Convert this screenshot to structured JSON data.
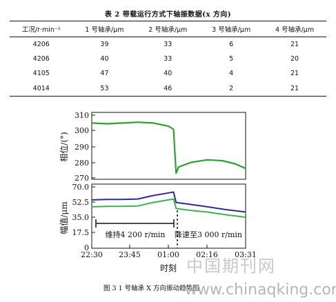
{
  "table": {
    "caption": "表 2 带载运行方式下轴振数据(x 方向)",
    "headers": [
      "工况/r·min⁻¹",
      "1 号轴承/μm",
      "2 号轴承/μm",
      "3 号轴承/μm",
      "4 号轴承/μm"
    ],
    "rows": [
      [
        "4206",
        "39",
        "33",
        "6",
        "21"
      ],
      [
        "4206",
        "40",
        "33",
        "5",
        "20"
      ],
      [
        "4105",
        "47",
        "40",
        "4",
        "21"
      ],
      [
        "4014",
        "53",
        "46",
        "2",
        "21"
      ]
    ]
  },
  "chart_data": [
    {
      "type": "line",
      "ylabel": "相位/(°)",
      "ylim": [
        270,
        310
      ],
      "yticks": [
        "310",
        "300",
        "290",
        "280",
        "270"
      ],
      "x_range": [
        "22:30",
        "03:31"
      ],
      "series": [
        {
          "color": "#2ca02c",
          "points": [
            [
              "22:30",
              305
            ],
            [
              "23:00",
              304.5
            ],
            [
              "23:30",
              305
            ],
            [
              "00:00",
              305.5
            ],
            [
              "00:30",
              305
            ],
            [
              "01:00",
              303
            ],
            [
              "01:10",
              301
            ],
            [
              "01:15",
              273
            ],
            [
              "01:20",
              277
            ],
            [
              "01:45",
              280
            ],
            [
              "02:16",
              281.5
            ],
            [
              "02:45",
              281
            ],
            [
              "03:10",
              279
            ],
            [
              "03:31",
              276
            ]
          ]
        }
      ]
    },
    {
      "type": "line",
      "ylabel": "幅值/μm",
      "ylim": [
        0,
        70
      ],
      "yticks": [
        "70.0",
        "52.5",
        "35.0",
        "17.5",
        "0"
      ],
      "xticks": [
        "22:30",
        "23:45",
        "01:00",
        "02:16",
        "03:31"
      ],
      "xlabel": "时刻",
      "series": [
        {
          "color": "#2a2a9e",
          "points": [
            [
              "22:30",
              55
            ],
            [
              "23:00",
              55.5
            ],
            [
              "23:30",
              55.5
            ],
            [
              "00:00",
              56
            ],
            [
              "00:30",
              60
            ],
            [
              "01:00",
              63
            ],
            [
              "01:10",
              64
            ],
            [
              "01:15",
              52
            ],
            [
              "01:40",
              50
            ],
            [
              "02:16",
              47
            ],
            [
              "02:50",
              44
            ],
            [
              "03:31",
              41
            ]
          ]
        },
        {
          "color": "#3cb34a",
          "points": [
            [
              "22:30",
              47
            ],
            [
              "23:00",
              47.5
            ],
            [
              "23:30",
              47.5
            ],
            [
              "00:00",
              48
            ],
            [
              "00:30",
              52
            ],
            [
              "01:00",
              55
            ],
            [
              "01:10",
              56
            ],
            [
              "01:15",
              45
            ],
            [
              "01:40",
              43
            ],
            [
              "02:16",
              41
            ],
            [
              "02:50",
              38
            ],
            [
              "03:31",
              35
            ]
          ]
        }
      ],
      "annotations": [
        "维持4 200 r/min",
        "降速至3 000 r/min"
      ]
    }
  ],
  "figure_caption": "图 3  1 号轴承 X 方向振动趋势图",
  "watermark": {
    "line1": "中国期刊网",
    "line2": "www.chinaqking.com"
  }
}
